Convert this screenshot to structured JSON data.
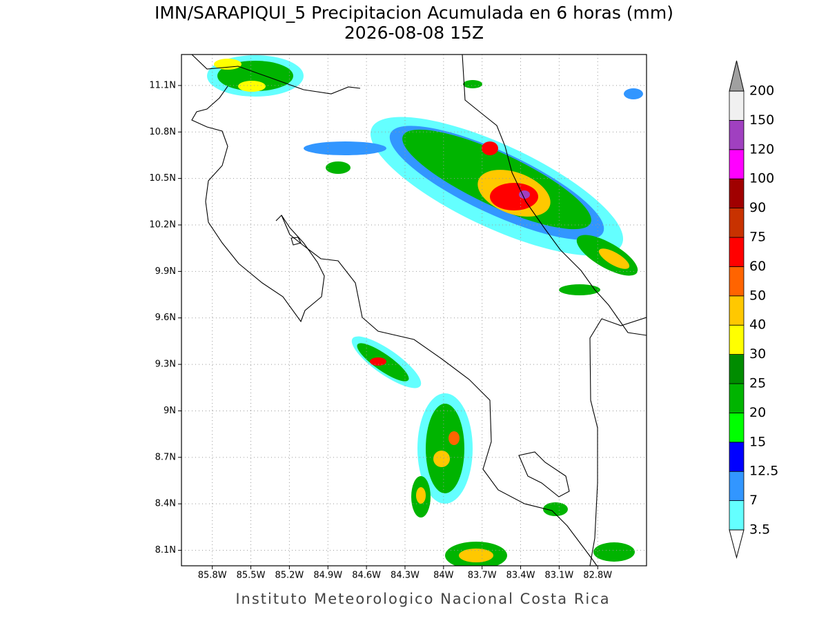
{
  "title": [
    "IMN/SARAPIQUI_5 Precipitacion Acumulada en 6 horas (mm)",
    "2026-08-08 15Z"
  ],
  "map": {
    "lon_range": [
      -86.04,
      -82.42
    ],
    "lat_range": [
      8.0,
      11.3
    ],
    "lon_ticks": [
      {
        "value": -85.8,
        "label": "85.8W"
      },
      {
        "value": -85.5,
        "label": "85.5W"
      },
      {
        "value": -85.2,
        "label": "85.2W"
      },
      {
        "value": -84.9,
        "label": "84.9W"
      },
      {
        "value": -84.6,
        "label": "84.6W"
      },
      {
        "value": -84.3,
        "label": "84.3W"
      },
      {
        "value": -84,
        "label": "84W"
      },
      {
        "value": -83.7,
        "label": "83.7W"
      },
      {
        "value": -83.4,
        "label": "83.4W"
      },
      {
        "value": -83.1,
        "label": "83.1W"
      },
      {
        "value": -82.8,
        "label": "82.8W"
      }
    ],
    "lat_ticks": [
      {
        "value": 8.1,
        "label": "8.1N"
      },
      {
        "value": 8.4,
        "label": "8.4N"
      },
      {
        "value": 8.7,
        "label": "8.7N"
      },
      {
        "value": 9,
        "label": "9N"
      },
      {
        "value": 9.3,
        "label": "9.3N"
      },
      {
        "value": 9.6,
        "label": "9.6N"
      },
      {
        "value": 9.9,
        "label": "9.9N"
      },
      {
        "value": 10.2,
        "label": "10.2N"
      },
      {
        "value": 10.5,
        "label": "10.5N"
      },
      {
        "value": 10.8,
        "label": "10.8N"
      },
      {
        "value": 11.1,
        "label": "11.1N"
      }
    ],
    "grid": true
  },
  "colorbar": {
    "levels": [
      3.5,
      7,
      12.5,
      15,
      20,
      25,
      30,
      40,
      50,
      60,
      75,
      90,
      100,
      120,
      150,
      200
    ],
    "colors": [
      "#64ffff",
      "#3296ff",
      "#0000ff",
      "#00ff00",
      "#00b400",
      "#008c00",
      "#ffff00",
      "#ffc800",
      "#ff6400",
      "#ff0000",
      "#c83200",
      "#a00000",
      "#ff00ff",
      "#a040c0",
      "#f0f0f0"
    ],
    "under_color": "#ffffff",
    "over_color": "#a0a0a0"
  },
  "footer": "Instituto Meteorologico Nacional Costa Rica"
}
